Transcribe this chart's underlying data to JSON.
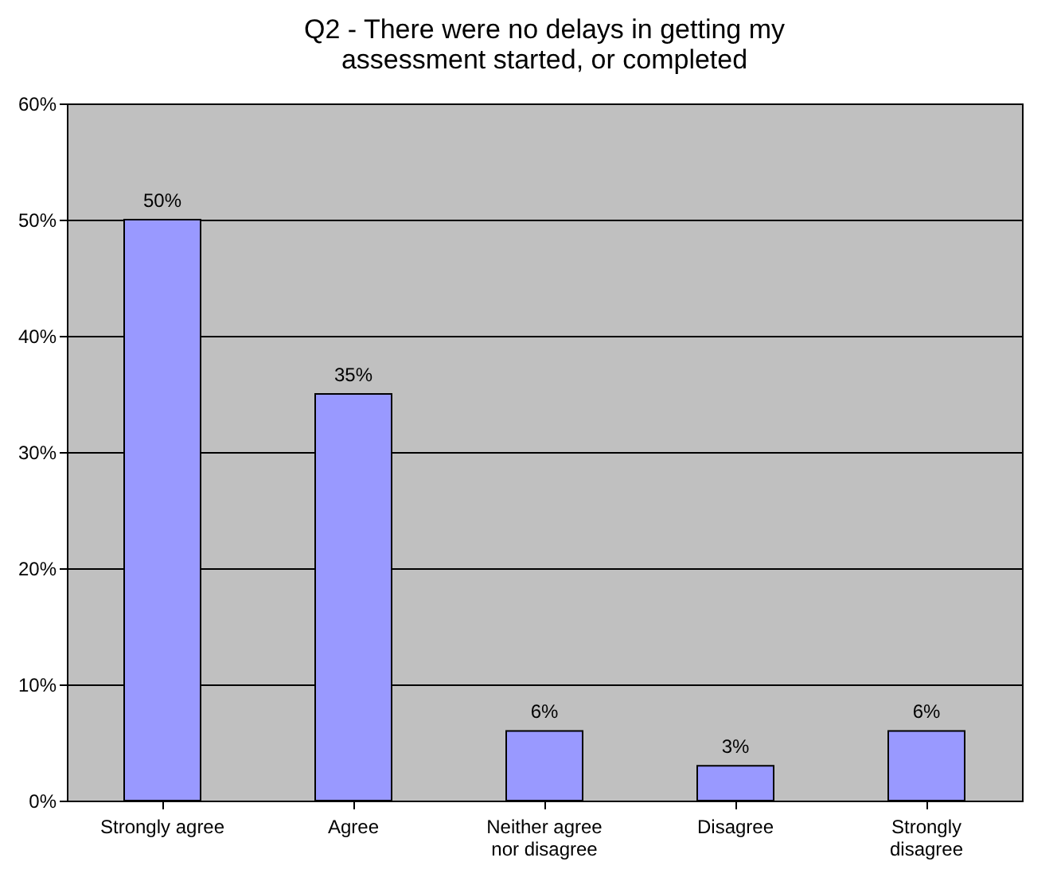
{
  "chart_data": {
    "type": "bar",
    "title": "Q2 - There were no delays in getting my assessment started, or completed",
    "categories": [
      "Strongly agree",
      "Agree",
      "Neither agree nor disagree",
      "Disagree",
      "Strongly disagree"
    ],
    "values": [
      50,
      35,
      6,
      3,
      6
    ],
    "value_labels": [
      "50%",
      "35%",
      "6%",
      "3%",
      "6%"
    ],
    "color": "#9999ff",
    "ylim": [
      0,
      60
    ],
    "yticks": [
      {
        "value": 0,
        "label": "0%"
      },
      {
        "value": 10,
        "label": "10%"
      },
      {
        "value": 20,
        "label": "20%"
      },
      {
        "value": 30,
        "label": "30%"
      },
      {
        "value": 40,
        "label": "40%"
      },
      {
        "value": 50,
        "label": "50%"
      },
      {
        "value": 60,
        "label": "60%"
      }
    ],
    "grid": "y"
  }
}
